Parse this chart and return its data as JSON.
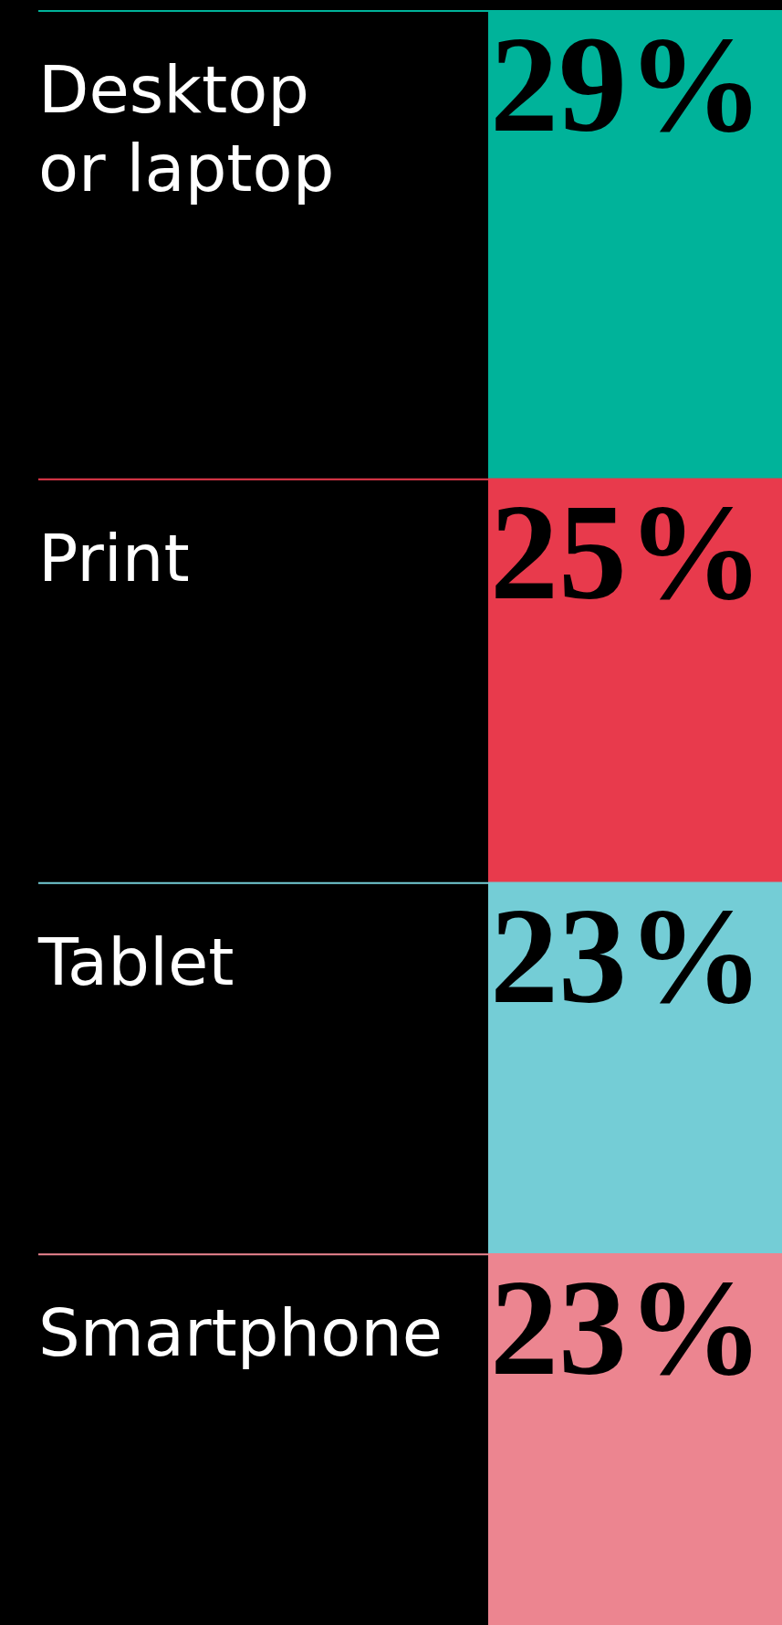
{
  "chart_data": {
    "type": "bar",
    "stacked": true,
    "categories": [
      null
    ],
    "ylim": [
      0,
      100
    ],
    "series": [
      {
        "name": "Smartphone",
        "color": "#ec8590",
        "values": [
          23
        ],
        "value_labels": [
          "23%"
        ]
      },
      {
        "name": "Tablet",
        "color": "#74cdd6",
        "values": [
          23
        ],
        "value_labels": [
          "23%"
        ]
      },
      {
        "name": "Print",
        "color": "#e83a4c",
        "values": [
          25
        ],
        "value_labels": [
          "25%"
        ]
      },
      {
        "name": "Desktop or laptop",
        "color": "#00b39a",
        "values": [
          29
        ],
        "value_labels": [
          "29%"
        ]
      }
    ]
  }
}
